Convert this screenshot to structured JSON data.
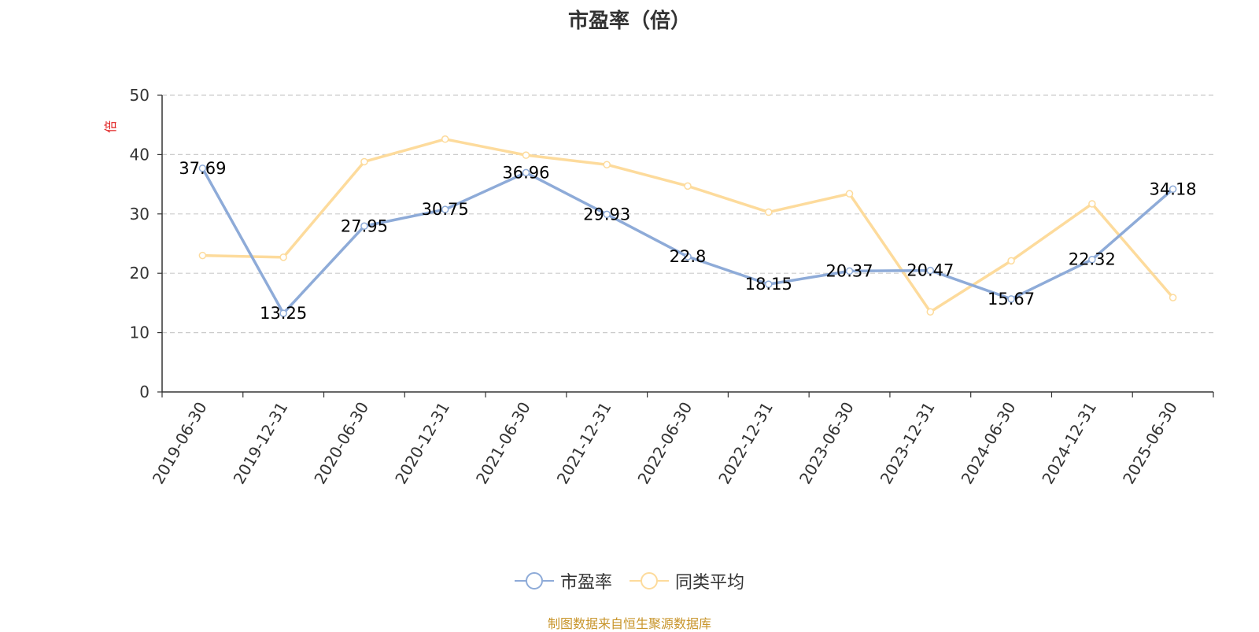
{
  "chart_data": {
    "type": "line",
    "title": "市盈率（倍）",
    "ylabel": "倍",
    "ylim": [
      0,
      50
    ],
    "yticks": [
      0,
      10,
      20,
      30,
      40,
      50
    ],
    "categories": [
      "2019-06-30",
      "2019-12-31",
      "2020-06-30",
      "2020-12-31",
      "2021-06-30",
      "2021-12-31",
      "2022-06-30",
      "2022-12-31",
      "2023-06-30",
      "2023-12-31",
      "2024-06-30",
      "2024-12-31",
      "2025-06-30"
    ],
    "series": [
      {
        "name": "市盈率",
        "color": "#8eabd8",
        "values": [
          37.69,
          13.25,
          27.95,
          30.75,
          36.96,
          29.93,
          22.8,
          18.15,
          20.37,
          20.47,
          15.67,
          22.32,
          34.18
        ],
        "labels": [
          "37.69",
          "13.25",
          "27.95",
          "30.75",
          "36.96",
          "29.93",
          "22.8",
          "18.15",
          "20.37",
          "20.47",
          "15.67",
          "22.32",
          "34.18"
        ]
      },
      {
        "name": "同类平均",
        "color": "#fddb9c",
        "values": [
          23.0,
          22.7,
          38.8,
          42.6,
          39.9,
          38.3,
          34.7,
          30.3,
          33.4,
          13.5,
          22.1,
          31.7,
          15.9
        ]
      }
    ],
    "grid": "dashed horizontal",
    "legend_position": "bottom-center"
  },
  "footer": {
    "text": "制图数据来自恒生聚源数据库",
    "color": "#c8952b"
  }
}
